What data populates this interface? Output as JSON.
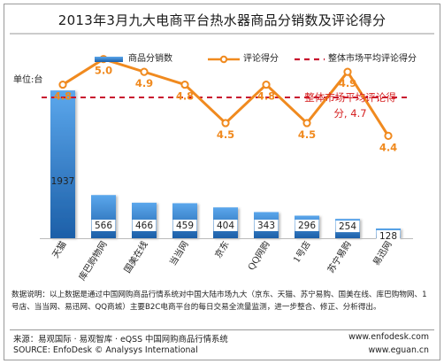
{
  "title": "2013年3月九大电商平台热水器商品分销数及评论得分",
  "unit_label": "单位:台",
  "legend": {
    "bar": "商品分销数",
    "line": "评论得分",
    "reference": "整体市场平均评论得分"
  },
  "annotation": "整体市场平均评论得分, 4.7",
  "notes": "数据说明：以上数据是通过中国网购商品行情系统对中国大陆市场九大（京东、天猫、苏宁易购、国美在线、库巴购物网、1号店、当当网、易迅网、QQ商城）主要B2C电商平台的每日交易全流量监测，进一步整合、修正、分析得出。",
  "footer": {
    "source_cn": "来源：易观国际 · 易观智库 · eQSS 中国网购商品行情系统",
    "source_en": "SOURCE: EnfoDesk © Analysys International",
    "url1": "www.enfodesk.com",
    "url2": "www.eguan.cn"
  },
  "colors": {
    "bar_top": "#5ba7ec",
    "bar_bottom": "#1c5fa8",
    "line": "#f08a1f",
    "marker_fill": "#ffffff",
    "reference": "#c8102e",
    "value_label": "#f08a1f",
    "annotation": "#d51f1f"
  },
  "chart_data": {
    "type": "bar",
    "title": "2013年3月九大电商平台热水器商品分销数及评论得分",
    "categories": [
      "天猫",
      "库巴购物网",
      "国美在线",
      "当当网",
      "京东",
      "QQ网购",
      "1号店",
      "苏宁易购",
      "易迅网"
    ],
    "series": [
      {
        "name": "商品分销数",
        "type": "bar",
        "values": [
          1937,
          566,
          466,
          459,
          404,
          343,
          296,
          254,
          128
        ]
      },
      {
        "name": "评论得分",
        "type": "line",
        "values": [
          4.8,
          5.0,
          4.9,
          4.8,
          4.5,
          4.8,
          4.5,
          4.9,
          4.4
        ]
      },
      {
        "name": "整体市场平均评论得分",
        "type": "reference",
        "value": 4.7
      }
    ],
    "ylabel": "单位:台",
    "bar_ylim": [
      0,
      2600
    ],
    "score_ylim": [
      3.6,
      5.15
    ],
    "grid": false,
    "legend_position": "top"
  }
}
